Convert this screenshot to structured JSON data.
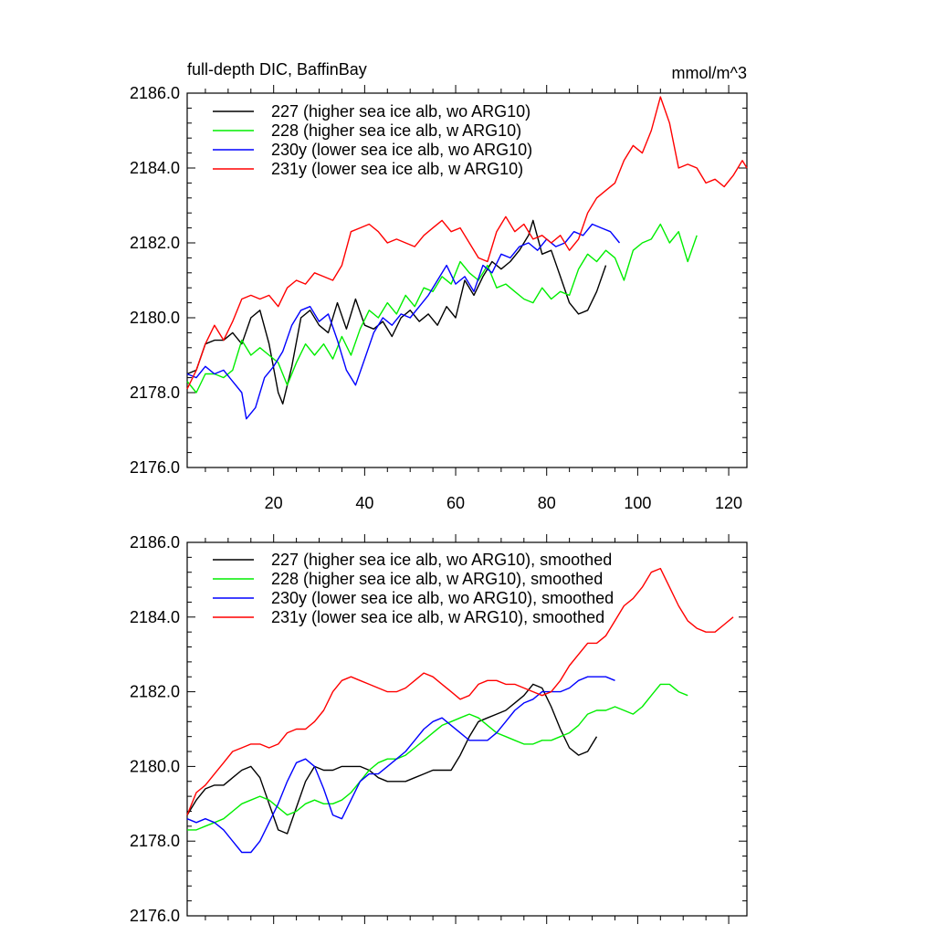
{
  "chart_data": [
    {
      "type": "line",
      "title": "full-depth DIC, BaffinBay",
      "unit_label": "mmol/m^3",
      "xlabel": "",
      "ylabel": "",
      "xlim": [
        1,
        124
      ],
      "ylim": [
        2176,
        2186
      ],
      "x_ticks": [
        20,
        40,
        60,
        80,
        100,
        120
      ],
      "x_tick_labels": [
        "20",
        "40",
        "60",
        "80",
        "100",
        "120"
      ],
      "y_ticks": [
        2176,
        2178,
        2180,
        2182,
        2184,
        2186
      ],
      "y_tick_labels": [
        "2176.0",
        "2178.0",
        "2180.0",
        "2182.0",
        "2184.0",
        "2186.0"
      ],
      "legend_position": "top-left",
      "grid": false,
      "series": [
        {
          "name": "227 (higher sea ice alb, wo ARG10)",
          "color": "#000000",
          "x": [
            1,
            3,
            5,
            7,
            9,
            11,
            13,
            15,
            17,
            19,
            21,
            22,
            24,
            26,
            28,
            30,
            32,
            34,
            36,
            38,
            40,
            42,
            44,
            46,
            48,
            50,
            52,
            54,
            56,
            58,
            60,
            62,
            64,
            66,
            68,
            70,
            72,
            74,
            76,
            77,
            79,
            81,
            83,
            85,
            87,
            89,
            91,
            93
          ],
          "values": [
            2178.5,
            2178.6,
            2179.3,
            2179.4,
            2179.4,
            2179.6,
            2179.3,
            2180.0,
            2180.2,
            2179.3,
            2178.0,
            2177.7,
            2178.7,
            2180.0,
            2180.2,
            2179.8,
            2179.6,
            2180.4,
            2179.7,
            2180.5,
            2179.8,
            2179.7,
            2179.9,
            2179.5,
            2180.0,
            2180.2,
            2179.9,
            2180.1,
            2179.8,
            2180.3,
            2180.0,
            2181.0,
            2180.6,
            2181.1,
            2181.5,
            2181.3,
            2181.5,
            2181.8,
            2182.2,
            2182.6,
            2181.7,
            2181.8,
            2181.1,
            2180.4,
            2180.1,
            2180.2,
            2180.7,
            2181.4
          ]
        },
        {
          "name": "228 (higher sea ice alb, w ARG10)",
          "color": "#00ee00",
          "x": [
            1,
            3,
            5,
            7,
            9,
            11,
            13,
            15,
            17,
            19,
            21,
            23,
            25,
            27,
            29,
            31,
            33,
            35,
            37,
            39,
            41,
            43,
            45,
            47,
            49,
            51,
            53,
            55,
            57,
            59,
            61,
            63,
            65,
            67,
            69,
            71,
            73,
            75,
            77,
            79,
            81,
            83,
            85,
            87,
            89,
            91,
            93,
            95,
            97,
            99,
            101,
            103,
            105,
            107,
            109,
            111,
            113
          ],
          "values": [
            2178.3,
            2178.0,
            2178.5,
            2178.5,
            2178.4,
            2178.6,
            2179.4,
            2179.0,
            2179.2,
            2179.0,
            2178.8,
            2178.2,
            2178.8,
            2179.3,
            2179.0,
            2179.3,
            2178.9,
            2179.5,
            2179.0,
            2179.7,
            2180.2,
            2180.0,
            2180.4,
            2180.1,
            2180.6,
            2180.3,
            2180.8,
            2180.7,
            2181.1,
            2180.9,
            2181.5,
            2181.2,
            2181.0,
            2181.4,
            2180.8,
            2180.9,
            2180.7,
            2180.5,
            2180.4,
            2180.8,
            2180.5,
            2180.7,
            2180.6,
            2181.3,
            2181.7,
            2181.5,
            2181.8,
            2181.6,
            2181.0,
            2181.8,
            2182.0,
            2182.1,
            2182.5,
            2182.0,
            2182.3,
            2181.5,
            2182.2
          ]
        },
        {
          "name": "230y (lower sea ice alb, wo ARG10)",
          "color": "#0000ff",
          "x": [
            1,
            3,
            5,
            7,
            9,
            11,
            13,
            14,
            16,
            18,
            20,
            22,
            24,
            26,
            28,
            30,
            32,
            34,
            36,
            38,
            40,
            42,
            44,
            46,
            48,
            50,
            52,
            54,
            56,
            58,
            60,
            62,
            64,
            66,
            68,
            70,
            72,
            74,
            76,
            78,
            80,
            82,
            84,
            86,
            88,
            90,
            92,
            94,
            96
          ],
          "values": [
            2178.5,
            2178.4,
            2178.7,
            2178.5,
            2178.6,
            2178.3,
            2178.0,
            2177.3,
            2177.6,
            2178.4,
            2178.7,
            2179.1,
            2179.8,
            2180.2,
            2180.3,
            2179.9,
            2180.1,
            2179.4,
            2178.6,
            2178.2,
            2178.9,
            2179.6,
            2180.0,
            2179.8,
            2180.1,
            2180.0,
            2180.3,
            2180.6,
            2181.0,
            2181.4,
            2180.9,
            2181.1,
            2180.7,
            2181.4,
            2181.2,
            2181.7,
            2181.6,
            2181.9,
            2182.0,
            2181.8,
            2182.1,
            2181.9,
            2182.0,
            2182.3,
            2182.2,
            2182.5,
            2182.4,
            2182.3,
            2182.0
          ]
        },
        {
          "name": "231y (lower sea ice alb, w ARG10)",
          "color": "#ff0000",
          "x": [
            1,
            3,
            5,
            7,
            9,
            11,
            13,
            15,
            17,
            19,
            21,
            23,
            25,
            27,
            29,
            31,
            33,
            35,
            37,
            39,
            41,
            43,
            45,
            47,
            49,
            51,
            53,
            55,
            57,
            59,
            61,
            63,
            65,
            67,
            69,
            71,
            73,
            75,
            77,
            79,
            81,
            83,
            85,
            87,
            89,
            91,
            93,
            95,
            97,
            99,
            101,
            103,
            105,
            107,
            109,
            111,
            113,
            115,
            117,
            119,
            121,
            123,
            124
          ],
          "values": [
            2178.1,
            2178.6,
            2179.3,
            2179.8,
            2179.4,
            2179.9,
            2180.5,
            2180.6,
            2180.5,
            2180.6,
            2180.3,
            2180.8,
            2181.0,
            2180.9,
            2181.2,
            2181.1,
            2181.0,
            2181.4,
            2182.3,
            2182.4,
            2182.5,
            2182.3,
            2182.0,
            2182.1,
            2182.0,
            2181.9,
            2182.2,
            2182.4,
            2182.6,
            2182.3,
            2182.4,
            2182.0,
            2181.6,
            2181.5,
            2182.3,
            2182.7,
            2182.3,
            2182.5,
            2182.1,
            2182.2,
            2182.0,
            2182.2,
            2181.8,
            2182.1,
            2182.8,
            2183.2,
            2183.4,
            2183.6,
            2184.2,
            2184.6,
            2184.4,
            2185.0,
            2185.9,
            2185.2,
            2184.0,
            2184.1,
            2184.0,
            2183.6,
            2183.7,
            2183.5,
            2183.8,
            2184.2,
            2184.0
          ]
        }
      ]
    },
    {
      "type": "line",
      "title": "",
      "xlabel": "",
      "ylabel": "",
      "xlim": [
        1,
        124
      ],
      "ylim": [
        2176,
        2186
      ],
      "x_ticks": [
        20,
        40,
        60,
        80,
        100,
        120
      ],
      "x_tick_labels": [],
      "y_ticks": [
        2176,
        2178,
        2180,
        2182,
        2184,
        2186
      ],
      "y_tick_labels": [
        "2176.0",
        "2178.0",
        "2180.0",
        "2182.0",
        "2184.0",
        "2186.0"
      ],
      "legend_position": "top-left",
      "grid": false,
      "series": [
        {
          "name": "227 (higher sea ice alb, wo ARG10), smoothed",
          "color": "#000000",
          "x": [
            1,
            3,
            5,
            7,
            9,
            11,
            13,
            15,
            17,
            19,
            21,
            23,
            25,
            27,
            29,
            31,
            33,
            35,
            37,
            39,
            41,
            43,
            45,
            47,
            49,
            51,
            53,
            55,
            57,
            59,
            61,
            63,
            65,
            67,
            69,
            71,
            73,
            75,
            77,
            79,
            81,
            83,
            85,
            87,
            89,
            91
          ],
          "values": [
            2178.7,
            2179.1,
            2179.4,
            2179.5,
            2179.5,
            2179.7,
            2179.9,
            2180.0,
            2179.7,
            2179.0,
            2178.3,
            2178.2,
            2178.9,
            2179.6,
            2180.0,
            2179.9,
            2179.9,
            2180.0,
            2180.0,
            2180.0,
            2179.9,
            2179.7,
            2179.6,
            2179.6,
            2179.6,
            2179.7,
            2179.8,
            2179.9,
            2179.9,
            2179.9,
            2180.3,
            2180.8,
            2181.2,
            2181.3,
            2181.4,
            2181.5,
            2181.7,
            2181.9,
            2182.2,
            2182.1,
            2181.6,
            2181.0,
            2180.5,
            2180.3,
            2180.4,
            2180.8
          ]
        },
        {
          "name": "228 (higher sea ice alb, w ARG10), smoothed",
          "color": "#00ee00",
          "x": [
            1,
            3,
            5,
            7,
            9,
            11,
            13,
            15,
            17,
            19,
            21,
            23,
            25,
            27,
            29,
            31,
            33,
            35,
            37,
            39,
            41,
            43,
            45,
            47,
            49,
            51,
            53,
            55,
            57,
            59,
            61,
            63,
            65,
            67,
            69,
            71,
            73,
            75,
            77,
            79,
            81,
            83,
            85,
            87,
            89,
            91,
            93,
            95,
            97,
            99,
            101,
            103,
            105,
            107,
            109,
            111
          ],
          "values": [
            2178.3,
            2178.3,
            2178.4,
            2178.5,
            2178.6,
            2178.8,
            2179.0,
            2179.1,
            2179.2,
            2179.1,
            2178.9,
            2178.7,
            2178.8,
            2179.0,
            2179.1,
            2179.0,
            2179.0,
            2179.1,
            2179.3,
            2179.6,
            2179.9,
            2180.1,
            2180.2,
            2180.2,
            2180.3,
            2180.5,
            2180.7,
            2180.9,
            2181.1,
            2181.2,
            2181.3,
            2181.4,
            2181.3,
            2181.1,
            2180.9,
            2180.8,
            2180.7,
            2180.6,
            2180.6,
            2180.7,
            2180.7,
            2180.8,
            2180.9,
            2181.1,
            2181.4,
            2181.5,
            2181.5,
            2181.6,
            2181.5,
            2181.4,
            2181.6,
            2181.9,
            2182.2,
            2182.2,
            2182.0,
            2181.9
          ]
        },
        {
          "name": "230y (lower sea ice alb, wo ARG10), smoothed",
          "color": "#0000ff",
          "x": [
            1,
            3,
            5,
            7,
            9,
            11,
            13,
            15,
            17,
            19,
            21,
            23,
            25,
            27,
            29,
            31,
            33,
            35,
            37,
            39,
            41,
            43,
            45,
            47,
            49,
            51,
            53,
            55,
            57,
            59,
            61,
            63,
            65,
            67,
            69,
            71,
            73,
            75,
            77,
            79,
            81,
            83,
            85,
            87,
            89,
            91,
            93,
            95
          ],
          "values": [
            2178.6,
            2178.5,
            2178.6,
            2178.5,
            2178.3,
            2178.0,
            2177.7,
            2177.7,
            2178.0,
            2178.5,
            2179.0,
            2179.6,
            2180.1,
            2180.2,
            2180.0,
            2179.4,
            2178.7,
            2178.6,
            2179.1,
            2179.6,
            2179.8,
            2179.8,
            2180.0,
            2180.2,
            2180.4,
            2180.7,
            2181.0,
            2181.2,
            2181.3,
            2181.1,
            2180.9,
            2180.7,
            2180.7,
            2180.7,
            2180.9,
            2181.2,
            2181.5,
            2181.7,
            2181.8,
            2182.0,
            2182.0,
            2182.0,
            2182.1,
            2182.3,
            2182.4,
            2182.4,
            2182.4,
            2182.3
          ]
        },
        {
          "name": "231y (lower sea ice alb, w ARG10), smoothed",
          "color": "#ff0000",
          "x": [
            1,
            3,
            5,
            7,
            9,
            11,
            13,
            15,
            17,
            19,
            21,
            23,
            25,
            27,
            29,
            31,
            33,
            35,
            37,
            39,
            41,
            43,
            45,
            47,
            49,
            51,
            53,
            55,
            57,
            59,
            61,
            63,
            65,
            67,
            69,
            71,
            73,
            75,
            77,
            79,
            81,
            83,
            85,
            87,
            89,
            91,
            93,
            95,
            97,
            99,
            101,
            103,
            105,
            107,
            109,
            111,
            113,
            115,
            117,
            119,
            121
          ],
          "values": [
            2178.7,
            2179.3,
            2179.5,
            2179.8,
            2180.1,
            2180.4,
            2180.5,
            2180.6,
            2180.6,
            2180.5,
            2180.6,
            2180.9,
            2181.0,
            2181.0,
            2181.2,
            2181.5,
            2182.0,
            2182.3,
            2182.4,
            2182.3,
            2182.2,
            2182.1,
            2182.0,
            2182.0,
            2182.1,
            2182.3,
            2182.5,
            2182.4,
            2182.2,
            2182.0,
            2181.8,
            2181.9,
            2182.2,
            2182.3,
            2182.3,
            2182.2,
            2182.2,
            2182.1,
            2182.0,
            2181.9,
            2182.0,
            2182.3,
            2182.7,
            2183.0,
            2183.3,
            2183.3,
            2183.5,
            2183.9,
            2184.3,
            2184.5,
            2184.8,
            2185.2,
            2185.3,
            2184.8,
            2184.3,
            2183.9,
            2183.7,
            2183.6,
            2183.6,
            2183.8,
            2184.0
          ]
        }
      ]
    }
  ]
}
